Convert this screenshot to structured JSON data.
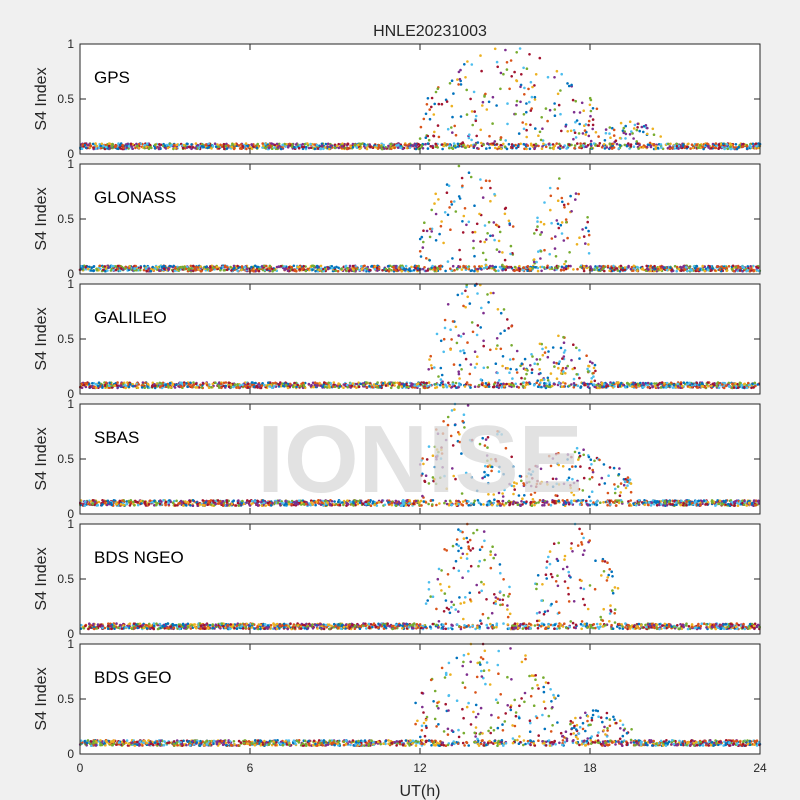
{
  "figure_title": "HNLE20231003",
  "watermark": "IONISE",
  "colors": [
    "#0072BD",
    "#D95319",
    "#EDB120",
    "#7E2F8E",
    "#77AC30",
    "#4DBEEE",
    "#A2142F"
  ],
  "chart_data": [
    {
      "type": "scatter",
      "label": "GPS",
      "ylabel": "S4 Index",
      "xlim": [
        0,
        24
      ],
      "ylim": [
        0,
        1
      ],
      "yticks": [
        "0",
        "0.5",
        "1"
      ],
      "baseline": 0.07,
      "active_windows": [
        [
          12.0,
          18.3,
          0.9
        ],
        [
          18.3,
          20.5,
          0.25
        ]
      ],
      "seed": 11
    },
    {
      "type": "scatter",
      "label": "GLONASS",
      "ylabel": "S4 Index",
      "xlim": [
        0,
        24
      ],
      "ylim": [
        0,
        1
      ],
      "yticks": [
        "0",
        "0.5",
        "1"
      ],
      "baseline": 0.05,
      "active_windows": [
        [
          12.0,
          15.3,
          0.95
        ],
        [
          16.0,
          18.0,
          0.95
        ]
      ],
      "seed": 23
    },
    {
      "type": "scatter",
      "label": "GALILEO",
      "ylabel": "S4 Index",
      "xlim": [
        0,
        24
      ],
      "ylim": [
        0,
        1
      ],
      "yticks": [
        "0",
        "0.5",
        "1"
      ],
      "baseline": 0.08,
      "active_windows": [
        [
          12.3,
          15.5,
          0.95
        ],
        [
          15.5,
          18.2,
          0.45
        ]
      ],
      "seed": 37
    },
    {
      "type": "scatter",
      "label": "SBAS",
      "ylabel": "S4 Index",
      "xlim": [
        0,
        24
      ],
      "ylim": [
        0,
        1
      ],
      "yticks": [
        "0",
        "0.5",
        "1"
      ],
      "baseline": 0.1,
      "active_windows": [
        [
          12.0,
          15.3,
          0.95
        ],
        [
          15.3,
          19.5,
          0.5
        ]
      ],
      "seed": 41
    },
    {
      "type": "scatter",
      "label": "BDS NGEO",
      "ylabel": "S4 Index",
      "xlim": [
        0,
        24
      ],
      "ylim": [
        0,
        1
      ],
      "yticks": [
        "0",
        "0.5",
        "1"
      ],
      "baseline": 0.07,
      "active_windows": [
        [
          12.2,
          15.2,
          0.95
        ],
        [
          16.0,
          19.0,
          0.95
        ]
      ],
      "seed": 53
    },
    {
      "type": "scatter",
      "label": "BDS GEO",
      "ylabel": "S4 Index",
      "xlim": [
        0,
        24
      ],
      "ylim": [
        0,
        1
      ],
      "yticks": [
        "0",
        "0.5",
        "1"
      ],
      "baseline": 0.1,
      "active_windows": [
        [
          11.8,
          17.0,
          0.95
        ],
        [
          17.0,
          19.5,
          0.3
        ]
      ],
      "seed": 67
    }
  ],
  "x_axis": {
    "label": "UT(h)",
    "ticks": [
      0,
      6,
      12,
      18,
      24
    ]
  }
}
